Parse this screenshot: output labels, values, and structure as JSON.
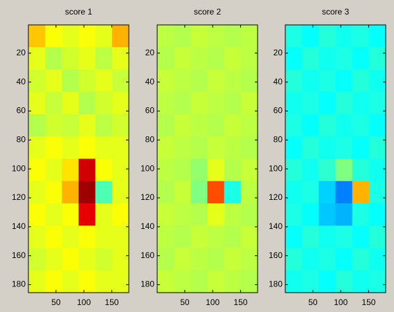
{
  "chart_data": [
    {
      "type": "heatmap",
      "title": "score 1",
      "colormap": "jet",
      "xlim": [
        0.5,
        180.5
      ],
      "ylim": [
        0.5,
        185.5
      ],
      "y_reversed": true,
      "xticks": [
        50,
        100,
        150
      ],
      "yticks": [
        20,
        40,
        60,
        80,
        100,
        120,
        140,
        160,
        180
      ],
      "values": [
        [
          0.68,
          0.62,
          0.6,
          0.62,
          0.6,
          0.7
        ],
        [
          0.6,
          0.55,
          0.58,
          0.6,
          0.56,
          0.6
        ],
        [
          0.58,
          0.6,
          0.55,
          0.58,
          0.6,
          0.57
        ],
        [
          0.6,
          0.57,
          0.6,
          0.55,
          0.58,
          0.6
        ],
        [
          0.55,
          0.58,
          0.57,
          0.6,
          0.56,
          0.58
        ],
        [
          0.6,
          0.62,
          0.6,
          0.62,
          0.6,
          0.6
        ],
        [
          0.62,
          0.6,
          0.65,
          0.92,
          0.62,
          0.6
        ],
        [
          0.6,
          0.62,
          0.7,
          0.97,
          0.45,
          0.6
        ],
        [
          0.62,
          0.6,
          0.62,
          0.9,
          0.6,
          0.62
        ],
        [
          0.6,
          0.62,
          0.6,
          0.62,
          0.6,
          0.6
        ],
        [
          0.58,
          0.6,
          0.62,
          0.6,
          0.58,
          0.6
        ],
        [
          0.6,
          0.62,
          0.6,
          0.62,
          0.6,
          0.6
        ]
      ]
    },
    {
      "type": "heatmap",
      "title": "score 2",
      "colormap": "jet",
      "xlim": [
        0.5,
        180.5
      ],
      "ylim": [
        0.5,
        185.5
      ],
      "y_reversed": true,
      "xticks": [
        50,
        100,
        150
      ],
      "yticks": [
        20,
        40,
        60,
        80,
        100,
        120,
        140,
        160,
        180
      ],
      "values": [
        [
          0.56,
          0.55,
          0.57,
          0.56,
          0.55,
          0.56
        ],
        [
          0.55,
          0.57,
          0.56,
          0.55,
          0.57,
          0.56
        ],
        [
          0.57,
          0.56,
          0.55,
          0.57,
          0.56,
          0.55
        ],
        [
          0.56,
          0.55,
          0.57,
          0.56,
          0.55,
          0.57
        ],
        [
          0.55,
          0.57,
          0.56,
          0.55,
          0.57,
          0.56
        ],
        [
          0.57,
          0.56,
          0.55,
          0.57,
          0.56,
          0.55
        ],
        [
          0.56,
          0.55,
          0.52,
          0.6,
          0.55,
          0.57
        ],
        [
          0.55,
          0.57,
          0.5,
          0.8,
          0.4,
          0.56
        ],
        [
          0.57,
          0.56,
          0.55,
          0.6,
          0.56,
          0.55
        ],
        [
          0.56,
          0.55,
          0.57,
          0.56,
          0.55,
          0.57
        ],
        [
          0.55,
          0.57,
          0.56,
          0.55,
          0.57,
          0.56
        ],
        [
          0.57,
          0.56,
          0.55,
          0.57,
          0.56,
          0.55
        ]
      ]
    },
    {
      "type": "heatmap",
      "title": "score 3",
      "colormap": "jet",
      "xlim": [
        0.5,
        180.5
      ],
      "ylim": [
        0.5,
        185.5
      ],
      "y_reversed": true,
      "xticks": [
        50,
        100,
        150
      ],
      "yticks": [
        20,
        40,
        60,
        80,
        100,
        120,
        140,
        160,
        180
      ],
      "values": [
        [
          0.4,
          0.38,
          0.41,
          0.39,
          0.4,
          0.38
        ],
        [
          0.38,
          0.41,
          0.39,
          0.4,
          0.38,
          0.41
        ],
        [
          0.41,
          0.39,
          0.4,
          0.38,
          0.41,
          0.39
        ],
        [
          0.39,
          0.4,
          0.38,
          0.41,
          0.39,
          0.4
        ],
        [
          0.4,
          0.38,
          0.41,
          0.39,
          0.4,
          0.38
        ],
        [
          0.38,
          0.41,
          0.39,
          0.4,
          0.38,
          0.41
        ],
        [
          0.41,
          0.39,
          0.42,
          0.5,
          0.41,
          0.39
        ],
        [
          0.39,
          0.4,
          0.33,
          0.25,
          0.7,
          0.4
        ],
        [
          0.4,
          0.38,
          0.32,
          0.3,
          0.4,
          0.38
        ],
        [
          0.38,
          0.41,
          0.39,
          0.4,
          0.38,
          0.41
        ],
        [
          0.41,
          0.39,
          0.4,
          0.38,
          0.41,
          0.39
        ],
        [
          0.39,
          0.4,
          0.38,
          0.41,
          0.39,
          0.4
        ]
      ]
    }
  ]
}
